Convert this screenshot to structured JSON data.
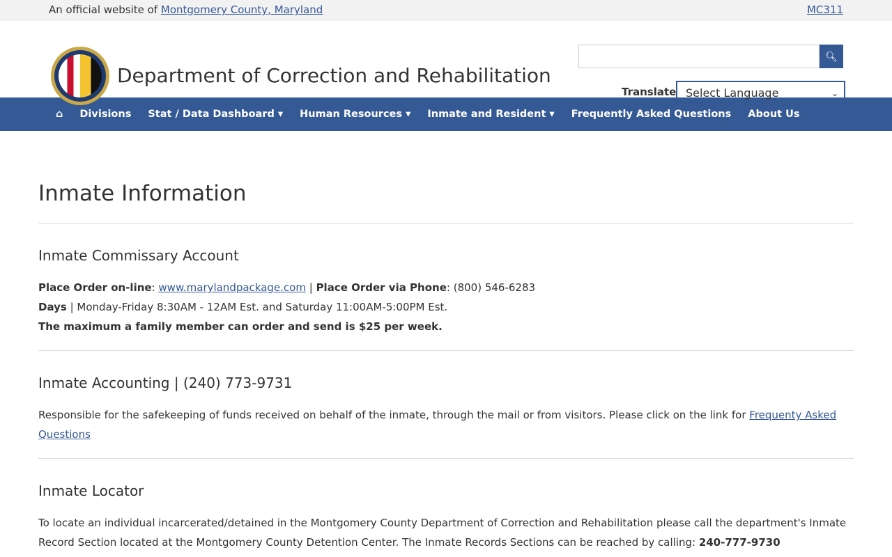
{
  "topbar": {
    "prefix": "An official website of ",
    "county_link": "Montgomery County, Maryland",
    "mc311": "MC311"
  },
  "header": {
    "title": "Department of Correction and Rehabilitation",
    "search_placeholder": "",
    "translate_label": "Translate",
    "language_select": "Select Language"
  },
  "nav": {
    "items": [
      "Divisions",
      "Stat / Data Dashboard ▾",
      "Human Resources ▾",
      "Inmate and Resident ▾",
      "Frequently Asked Questions",
      "About Us"
    ]
  },
  "colors": {
    "brand": "#345995"
  },
  "main": {
    "title": "Inmate Information",
    "commissary": {
      "heading": "Inmate Commissary Account",
      "online_label": "Place Order on-line",
      "online_link": "www.marylandpackage.com",
      "phone_label": "Place Order via Phone",
      "phone": "(800) 546-6283",
      "days_label": "Days",
      "days": "Monday-Friday 8:30AM - 12AM Est. and Saturday 11:00AM-5:00PM Est.",
      "max": "The maximum a family member can order and send is $25 per week."
    },
    "accounting": {
      "heading": "Inmate Accounting | (240) 773-9731",
      "text": "Responsible for the safekeeping of funds received on behalf of the inmate, through the mail or from visitors. Please click on the link for ",
      "link": "Frequenty Asked Questions"
    },
    "locator": {
      "heading": "Inmate Locator",
      "text": "To locate an individual incarcerated/detained in the Montgomery County Department of Correction and Rehabilitation please call the department's Inmate Record Section located at the Montgomery County Detention Center. The Inmate Records Sections can be reached by calling: ",
      "phone": "240-777-9730"
    }
  }
}
